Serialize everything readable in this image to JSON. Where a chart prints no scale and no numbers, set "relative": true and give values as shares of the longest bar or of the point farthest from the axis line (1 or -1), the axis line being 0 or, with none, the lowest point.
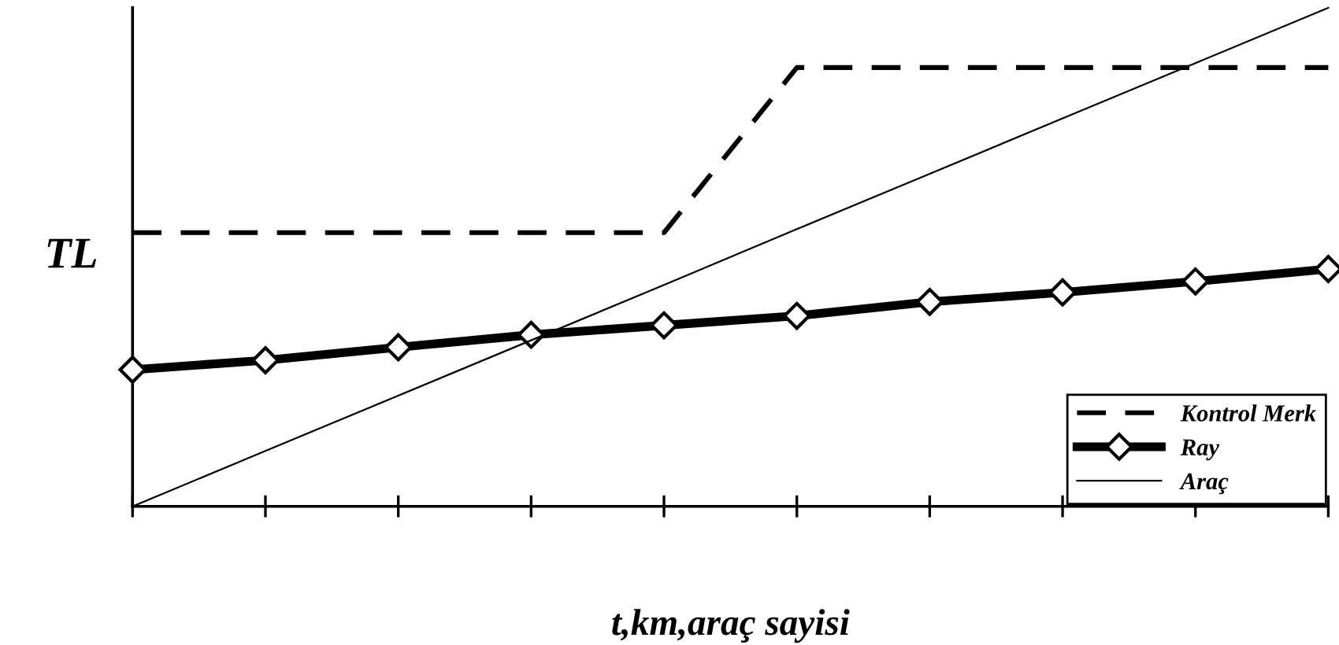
{
  "chart_data": {
    "type": "line",
    "xlabel": "t,km,araç sayisi",
    "ylabel": "TL",
    "relative": true,
    "tick_labels": false,
    "grid": false,
    "legend": "bottom right",
    "categories": [
      null,
      null,
      null,
      null,
      null,
      null,
      null,
      null,
      null,
      null
    ],
    "series": [
      {
        "name": "Kontrol Merk",
        "color": "#000000",
        "line_style": "dashed",
        "marker": "none",
        "values": [
          0.549,
          0.549,
          0.549,
          0.549,
          0.549,
          0.88,
          0.88,
          0.88,
          0.88,
          0.88
        ]
      },
      {
        "name": "Ray",
        "color": "#000000",
        "line_style": "solid",
        "marker": "diamond",
        "values": [
          0.274,
          0.293,
          0.319,
          0.344,
          0.363,
          0.382,
          0.41,
          0.429,
          0.451,
          0.476
        ]
      },
      {
        "name": "Araç",
        "color": "#000000",
        "line_style": "solid",
        "marker": "none",
        "values": [
          0.0,
          0.111,
          0.222,
          0.333,
          0.444,
          0.556,
          0.667,
          0.778,
          0.889,
          1.0
        ]
      }
    ]
  }
}
